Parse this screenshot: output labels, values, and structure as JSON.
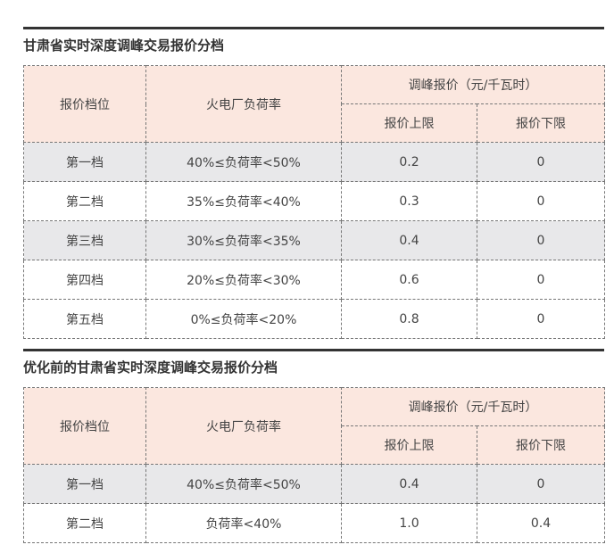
{
  "tables": [
    {
      "title": "甘肃省实时深度调峰交易报价分档",
      "headers": {
        "tier": "报价档位",
        "load_rate": "火电厂负荷率",
        "price_group": "调峰报价（元/千瓦时）",
        "upper": "报价上限",
        "lower": "报价下限"
      },
      "rows": [
        {
          "tier": "第一档",
          "load_rate": "40%≤负荷率<50%",
          "upper": "0.2",
          "lower": "0",
          "shaded": true
        },
        {
          "tier": "第二档",
          "load_rate": "35%≤负荷率<40%",
          "upper": "0.3",
          "lower": "0",
          "shaded": false
        },
        {
          "tier": "第三档",
          "load_rate": "30%≤负荷率<35%",
          "upper": "0.4",
          "lower": "0",
          "shaded": true
        },
        {
          "tier": "第四档",
          "load_rate": "20%≤负荷率<30%",
          "upper": "0.6",
          "lower": "0",
          "shaded": false
        },
        {
          "tier": "第五档",
          "load_rate": "0%≤负荷率<20%",
          "upper": "0.8",
          "lower": "0",
          "shaded": false
        }
      ]
    },
    {
      "title": "优化前的甘肃省实时深度调峰交易报价分档",
      "headers": {
        "tier": "报价档位",
        "load_rate": "火电厂负荷率",
        "price_group": "调峰报价（元/千瓦时）",
        "upper": "报价上限",
        "lower": "报价下限"
      },
      "rows": [
        {
          "tier": "第一档",
          "load_rate": "40%≤负荷率<50%",
          "upper": "0.4",
          "lower": "0",
          "shaded": true
        },
        {
          "tier": "第二档",
          "load_rate": "负荷率<40%",
          "upper": "1.0",
          "lower": "0.4",
          "shaded": false
        }
      ]
    }
  ],
  "colors": {
    "header_bg": "#fbe7df",
    "shaded_row_bg": "#e8e8ea",
    "rule": "#333333"
  }
}
